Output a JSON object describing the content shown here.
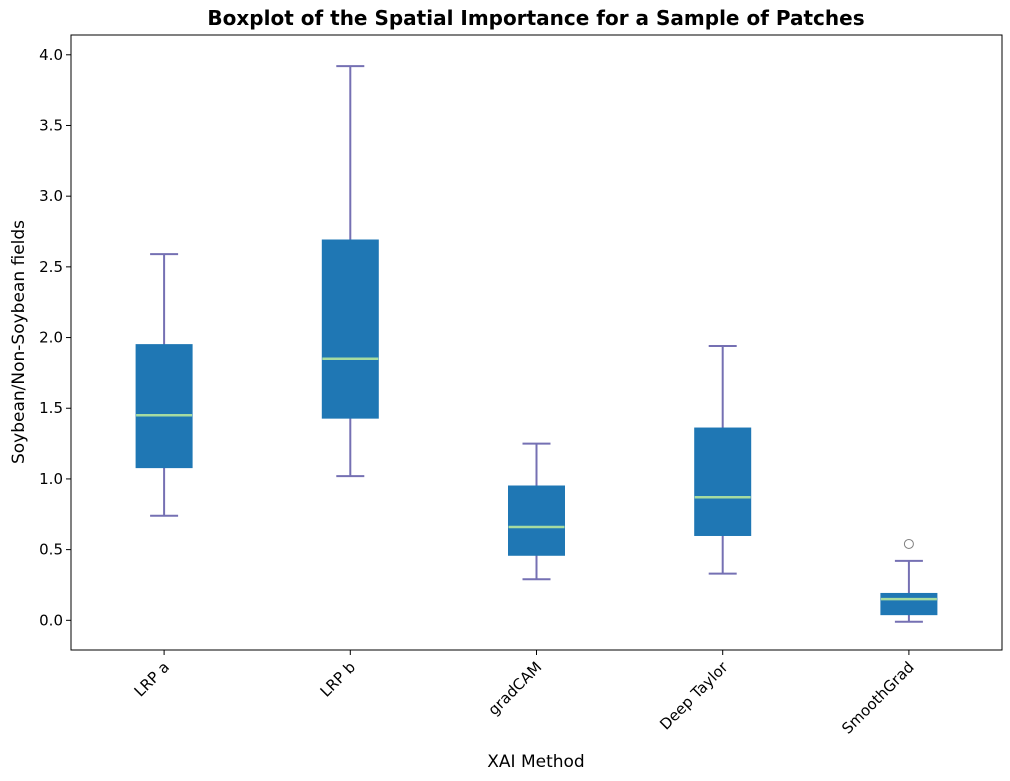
{
  "chart_data": {
    "type": "boxplot",
    "title": "Boxplot of the Spatial Importance for a Sample of Patches",
    "xlabel": "XAI Method",
    "ylabel": "Soybean/Non-Soybean fields",
    "ylim": [
      -0.21,
      4.14
    ],
    "yticks": [
      0.0,
      0.5,
      1.0,
      1.5,
      2.0,
      2.5,
      3.0,
      3.5,
      4.0
    ],
    "ytick_labels": [
      "0.0",
      "0.5",
      "1.0",
      "1.5",
      "2.0",
      "2.5",
      "3.0",
      "3.5",
      "4.0"
    ],
    "categories": [
      "LRP a",
      "LRP b",
      "gradCAM",
      "Deep Taylor",
      "SmoothGrad"
    ],
    "boxes": [
      {
        "category": "LRP a",
        "whisker_low": 0.74,
        "q1": 1.08,
        "median": 1.45,
        "q3": 1.95,
        "whisker_high": 2.59,
        "outliers": []
      },
      {
        "category": "LRP b",
        "whisker_low": 1.02,
        "q1": 1.43,
        "median": 1.85,
        "q3": 2.69,
        "whisker_high": 3.92,
        "outliers": []
      },
      {
        "category": "gradCAM",
        "whisker_low": 0.29,
        "q1": 0.46,
        "median": 0.66,
        "q3": 0.95,
        "whisker_high": 1.25,
        "outliers": []
      },
      {
        "category": "Deep Taylor",
        "whisker_low": 0.33,
        "q1": 0.6,
        "median": 0.87,
        "q3": 1.36,
        "whisker_high": 1.94,
        "outliers": []
      },
      {
        "category": "SmoothGrad",
        "whisker_low": -0.01,
        "q1": 0.04,
        "median": 0.15,
        "q3": 0.19,
        "whisker_high": 0.42,
        "outliers": [
          0.54
        ]
      }
    ],
    "colors": {
      "box_fill": "#1f77b4",
      "median": "#a6dba0",
      "whisker": "#7570b3",
      "outlier_edge": "#808080"
    },
    "grid": false,
    "legend": "none"
  }
}
